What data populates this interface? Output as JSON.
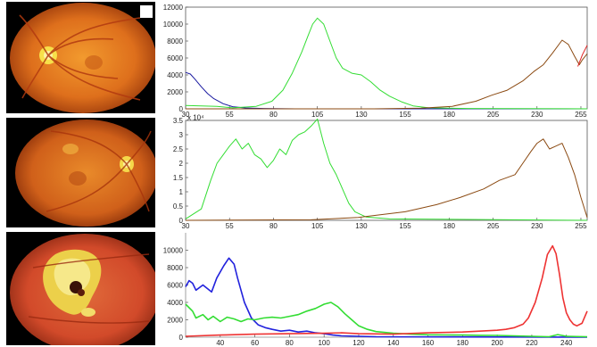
{
  "chart_data": [
    {
      "type": "line",
      "xlim": [
        0,
        256
      ],
      "ylim": [
        0,
        12000
      ],
      "xticks": [
        {
          "value": 0,
          "label": "30"
        },
        {
          "value": 28,
          "label": "55"
        },
        {
          "value": 56,
          "label": "80"
        },
        {
          "value": 84,
          "label": "105"
        },
        {
          "value": 112,
          "label": "130"
        },
        {
          "value": 140,
          "label": "155"
        },
        {
          "value": 168,
          "label": "180"
        },
        {
          "value": 196,
          "label": "205"
        },
        {
          "value": 224,
          "label": "230"
        },
        {
          "value": 252,
          "label": "255"
        }
      ],
      "yticks": [
        {
          "value": 0,
          "label": "0"
        },
        {
          "value": 2000,
          "label": "2000"
        },
        {
          "value": 4000,
          "label": "4000"
        },
        {
          "value": 6000,
          "label": "6000"
        },
        {
          "value": 8000,
          "label": "8000"
        },
        {
          "value": 10000,
          "label": "10000"
        },
        {
          "value": 12000,
          "label": "12000"
        }
      ],
      "grid": false,
      "series": [
        {
          "color": "#1a1aa0",
          "points": [
            [
              0,
              4300
            ],
            [
              3,
              4100
            ],
            [
              6,
              3500
            ],
            [
              10,
              2600
            ],
            [
              14,
              1800
            ],
            [
              18,
              1200
            ],
            [
              24,
              600
            ],
            [
              30,
              250
            ],
            [
              38,
              100
            ],
            [
              50,
              40
            ],
            [
              70,
              0
            ],
            [
              256,
              0
            ]
          ]
        },
        {
          "color": "#33dd33",
          "points": [
            [
              0,
              400
            ],
            [
              20,
              300
            ],
            [
              30,
              120
            ],
            [
              45,
              300
            ],
            [
              55,
              900
            ],
            [
              62,
              2200
            ],
            [
              68,
              4200
            ],
            [
              74,
              6700
            ],
            [
              78,
              8600
            ],
            [
              81,
              10000
            ],
            [
              84,
              10700
            ],
            [
              88,
              10000
            ],
            [
              92,
              8000
            ],
            [
              96,
              6000
            ],
            [
              100,
              4800
            ],
            [
              106,
              4200
            ],
            [
              112,
              4000
            ],
            [
              118,
              3200
            ],
            [
              124,
              2200
            ],
            [
              130,
              1500
            ],
            [
              138,
              800
            ],
            [
              145,
              350
            ],
            [
              155,
              120
            ],
            [
              180,
              40
            ],
            [
              256,
              0
            ]
          ]
        },
        {
          "color": "#8b4a12",
          "points": [
            [
              0,
              0
            ],
            [
              120,
              0
            ],
            [
              150,
              80
            ],
            [
              170,
              300
            ],
            [
              185,
              900
            ],
            [
              195,
              1600
            ],
            [
              205,
              2200
            ],
            [
              215,
              3300
            ],
            [
              222,
              4400
            ],
            [
              228,
              5200
            ],
            [
              234,
              6600
            ],
            [
              240,
              8100
            ],
            [
              244,
              7600
            ],
            [
              248,
              6200
            ],
            [
              251,
              5200
            ],
            [
              253,
              5800
            ],
            [
              256,
              6500
            ]
          ]
        },
        {
          "color": "#e02020",
          "points": [
            [
              250,
              5000
            ],
            [
              253,
              6400
            ],
            [
              256,
              7500
            ]
          ]
        }
      ]
    },
    {
      "type": "line",
      "ylabel_exponent": "x 10⁴",
      "xlim": [
        0,
        256
      ],
      "ylim": [
        0,
        3.5
      ],
      "xticks": [
        {
          "value": 0,
          "label": "30"
        },
        {
          "value": 28,
          "label": "55"
        },
        {
          "value": 56,
          "label": "80"
        },
        {
          "value": 84,
          "label": "105"
        },
        {
          "value": 112,
          "label": "130"
        },
        {
          "value": 140,
          "label": "155"
        },
        {
          "value": 168,
          "label": "180"
        },
        {
          "value": 196,
          "label": "205"
        },
        {
          "value": 224,
          "label": "230"
        },
        {
          "value": 252,
          "label": "255"
        }
      ],
      "yticks": [
        {
          "value": 0,
          "label": "0"
        },
        {
          "value": 0.5,
          "label": "0.5"
        },
        {
          "value": 1,
          "label": "1"
        },
        {
          "value": 1.5,
          "label": "1.5"
        },
        {
          "value": 2,
          "label": "2"
        },
        {
          "value": 2.5,
          "label": "2.5"
        },
        {
          "value": 3,
          "label": "3"
        },
        {
          "value": 3.5,
          "label": "3.5"
        }
      ],
      "grid": false,
      "series": [
        {
          "color": "#33dd33",
          "points": [
            [
              0,
              0.05
            ],
            [
              10,
              0.4
            ],
            [
              16,
              1.4
            ],
            [
              20,
              2.0
            ],
            [
              24,
              2.3
            ],
            [
              28,
              2.6
            ],
            [
              32,
              2.85
            ],
            [
              36,
              2.5
            ],
            [
              40,
              2.7
            ],
            [
              44,
              2.3
            ],
            [
              48,
              2.15
            ],
            [
              52,
              1.85
            ],
            [
              56,
              2.1
            ],
            [
              60,
              2.5
            ],
            [
              64,
              2.3
            ],
            [
              68,
              2.8
            ],
            [
              72,
              3.0
            ],
            [
              76,
              3.1
            ],
            [
              80,
              3.3
            ],
            [
              84,
              3.55
            ],
            [
              88,
              2.7
            ],
            [
              92,
              2.0
            ],
            [
              96,
              1.6
            ],
            [
              100,
              1.1
            ],
            [
              104,
              0.6
            ],
            [
              108,
              0.3
            ],
            [
              115,
              0.12
            ],
            [
              130,
              0.05
            ],
            [
              256,
              0
            ]
          ]
        },
        {
          "color": "#8b4a12",
          "points": [
            [
              0,
              0
            ],
            [
              80,
              0.02
            ],
            [
              110,
              0.1
            ],
            [
              140,
              0.3
            ],
            [
              160,
              0.55
            ],
            [
              175,
              0.8
            ],
            [
              190,
              1.1
            ],
            [
              200,
              1.4
            ],
            [
              210,
              1.6
            ],
            [
              215,
              2.0
            ],
            [
              220,
              2.4
            ],
            [
              224,
              2.7
            ],
            [
              228,
              2.85
            ],
            [
              232,
              2.5
            ],
            [
              236,
              2.6
            ],
            [
              240,
              2.7
            ],
            [
              244,
              2.2
            ],
            [
              248,
              1.6
            ],
            [
              252,
              0.8
            ],
            [
              256,
              0.1
            ]
          ]
        }
      ]
    },
    {
      "type": "line",
      "xlim": [
        20,
        252
      ],
      "ylim": [
        0,
        12000
      ],
      "xticks": [
        {
          "value": 40,
          "label": "40"
        },
        {
          "value": 60,
          "label": "60"
        },
        {
          "value": 80,
          "label": "80"
        },
        {
          "value": 100,
          "label": "100"
        },
        {
          "value": 120,
          "label": "120"
        },
        {
          "value": 140,
          "label": "140"
        },
        {
          "value": 160,
          "label": "160"
        },
        {
          "value": 180,
          "label": "180"
        },
        {
          "value": 200,
          "label": "200"
        },
        {
          "value": 220,
          "label": "220"
        },
        {
          "value": 240,
          "label": "240"
        }
      ],
      "yticks": [
        {
          "value": 0,
          "label": "0"
        },
        {
          "value": 2000,
          "label": "2000"
        },
        {
          "value": 4000,
          "label": "4000"
        },
        {
          "value": 6000,
          "label": "6000"
        },
        {
          "value": 8000,
          "label": "8000"
        },
        {
          "value": 10000,
          "label": "10000"
        }
      ],
      "grid": false,
      "series": [
        {
          "color": "#2222dd",
          "points": [
            [
              20,
              5800
            ],
            [
              22,
              6500
            ],
            [
              24,
              6200
            ],
            [
              26,
              5400
            ],
            [
              30,
              6000
            ],
            [
              35,
              5200
            ],
            [
              38,
              6800
            ],
            [
              42,
              8200
            ],
            [
              45,
              9100
            ],
            [
              48,
              8400
            ],
            [
              50,
              6800
            ],
            [
              54,
              4000
            ],
            [
              58,
              2200
            ],
            [
              62,
              1400
            ],
            [
              66,
              1100
            ],
            [
              70,
              900
            ],
            [
              75,
              700
            ],
            [
              80,
              800
            ],
            [
              85,
              600
            ],
            [
              90,
              700
            ],
            [
              95,
              500
            ],
            [
              100,
              400
            ],
            [
              105,
              250
            ],
            [
              110,
              150
            ],
            [
              130,
              50
            ],
            [
              252,
              0
            ]
          ]
        },
        {
          "color": "#33dd33",
          "points": [
            [
              20,
              3800
            ],
            [
              24,
              3000
            ],
            [
              26,
              2200
            ],
            [
              30,
              2600
            ],
            [
              33,
              2000
            ],
            [
              36,
              2400
            ],
            [
              40,
              1800
            ],
            [
              44,
              2300
            ],
            [
              48,
              2100
            ],
            [
              52,
              1800
            ],
            [
              56,
              2100
            ],
            [
              60,
              2000
            ],
            [
              65,
              2200
            ],
            [
              70,
              2300
            ],
            [
              75,
              2200
            ],
            [
              80,
              2400
            ],
            [
              85,
              2600
            ],
            [
              90,
              3000
            ],
            [
              95,
              3300
            ],
            [
              100,
              3800
            ],
            [
              104,
              4000
            ],
            [
              108,
              3500
            ],
            [
              112,
              2700
            ],
            [
              116,
              2000
            ],
            [
              120,
              1300
            ],
            [
              125,
              900
            ],
            [
              130,
              650
            ],
            [
              140,
              450
            ],
            [
              150,
              350
            ],
            [
              160,
              280
            ],
            [
              170,
              260
            ],
            [
              180,
              250
            ],
            [
              190,
              220
            ],
            [
              200,
              200
            ],
            [
              210,
              150
            ],
            [
              220,
              100
            ],
            [
              230,
              50
            ],
            [
              235,
              300
            ],
            [
              240,
              100
            ],
            [
              252,
              50
            ]
          ]
        },
        {
          "color": "#ee3333",
          "points": [
            [
              20,
              100
            ],
            [
              40,
              250
            ],
            [
              60,
              350
            ],
            [
              80,
              400
            ],
            [
              100,
              450
            ],
            [
              110,
              500
            ],
            [
              120,
              400
            ],
            [
              140,
              350
            ],
            [
              160,
              500
            ],
            [
              180,
              600
            ],
            [
              190,
              700
            ],
            [
              200,
              800
            ],
            [
              205,
              900
            ],
            [
              210,
              1100
            ],
            [
              215,
              1500
            ],
            [
              218,
              2200
            ],
            [
              222,
              4000
            ],
            [
              226,
              6800
            ],
            [
              229,
              9500
            ],
            [
              232,
              10500
            ],
            [
              234,
              9600
            ],
            [
              236,
              7200
            ],
            [
              238,
              4500
            ],
            [
              240,
              2800
            ],
            [
              242,
              2000
            ],
            [
              244,
              1500
            ],
            [
              246,
              1300
            ],
            [
              249,
              1600
            ],
            [
              252,
              3000
            ]
          ]
        }
      ]
    }
  ]
}
